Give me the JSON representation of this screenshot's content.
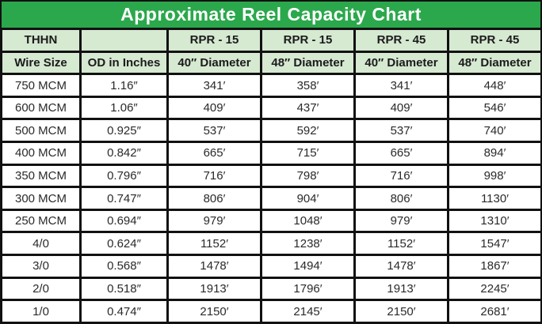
{
  "title": "Approximate Reel Capacity Chart",
  "colors": {
    "title_bg": "#2BA84C",
    "header_bg": "#D6E9D1",
    "border": "#111111",
    "title_text": "#FFFFFF",
    "body_text": "#2A2A2A"
  },
  "chart_data": {
    "type": "table",
    "title": "Approximate Reel Capacity Chart",
    "header_row_1": [
      "THHN",
      "",
      "RPR - 15",
      "RPR - 15",
      "RPR - 45",
      "RPR - 45"
    ],
    "header_row_2": [
      "Wire Size",
      "OD in Inches",
      "40″ Diameter",
      "48″ Diameter",
      "40″ Diameter",
      "48″ Diameter"
    ],
    "rows": [
      [
        "750 MCM",
        "1.16″",
        "341′",
        "358′",
        "341′",
        "448′"
      ],
      [
        "600 MCM",
        "1.06″",
        "409′",
        "437′",
        "409′",
        "546′"
      ],
      [
        "500 MCM",
        "0.925″",
        "537′",
        "592′",
        "537′",
        "740′"
      ],
      [
        "400 MCM",
        "0.842″",
        "665′",
        "715′",
        "665′",
        "894′"
      ],
      [
        "350 MCM",
        "0.796″",
        "716′",
        "798′",
        "716′",
        "998′"
      ],
      [
        "300 MCM",
        "0.747″",
        "806′",
        "904′",
        "806′",
        "1130′"
      ],
      [
        "250 MCM",
        "0.694″",
        "979′",
        "1048′",
        "979′",
        "1310′"
      ],
      [
        "4/0",
        "0.624″",
        "1152′",
        "1238′",
        "1152′",
        "1547′"
      ],
      [
        "3/0",
        "0.568″",
        "1478′",
        "1494′",
        "1478′",
        "1867′"
      ],
      [
        "2/0",
        "0.518″",
        "1913′",
        "1796′",
        "1913′",
        "2245′"
      ],
      [
        "1/0",
        "0.474″",
        "2150′",
        "2145′",
        "2150′",
        "2681′"
      ]
    ]
  }
}
